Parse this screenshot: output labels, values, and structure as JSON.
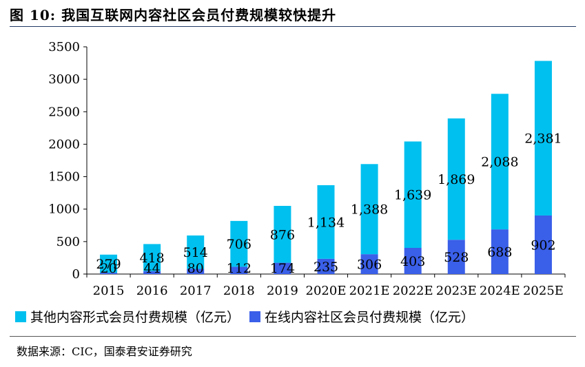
{
  "title": "图 10:  我国互联网内容社区会员付费规模较快提升",
  "source": "数据来源：CIC，国泰君安证券研究",
  "colors": {
    "other": "#00c0ef",
    "online": "#3a5fe8"
  },
  "chart_data": {
    "type": "bar",
    "stacked": true,
    "categories": [
      "2015",
      "2016",
      "2017",
      "2018",
      "2019",
      "2020E",
      "2021E",
      "2022E",
      "2023E",
      "2024E",
      "2025E"
    ],
    "series": [
      {
        "name": "在线内容社区会员付费规模（亿元）",
        "values": [
          20,
          44,
          80,
          112,
          174,
          235,
          306,
          403,
          528,
          688,
          902
        ],
        "labels": [
          "20",
          "44",
          "80",
          "112",
          "174",
          "235",
          "306",
          "403",
          "528",
          "688",
          "902"
        ]
      },
      {
        "name": "其他内容形式会员付费规模（亿元）",
        "values": [
          279,
          418,
          514,
          706,
          876,
          1134,
          1388,
          1639,
          1869,
          2088,
          2381
        ],
        "labels": [
          "279",
          "418",
          "514",
          "706",
          "876",
          "1,134",
          "1,388",
          "1,639",
          "1,869",
          "2,088",
          "2,381"
        ]
      }
    ],
    "ylim": [
      0,
      3500
    ],
    "yticks": [
      "0",
      "500",
      "1000",
      "1500",
      "2000",
      "2500",
      "3000",
      "3500"
    ],
    "legend_position": "bottom"
  }
}
